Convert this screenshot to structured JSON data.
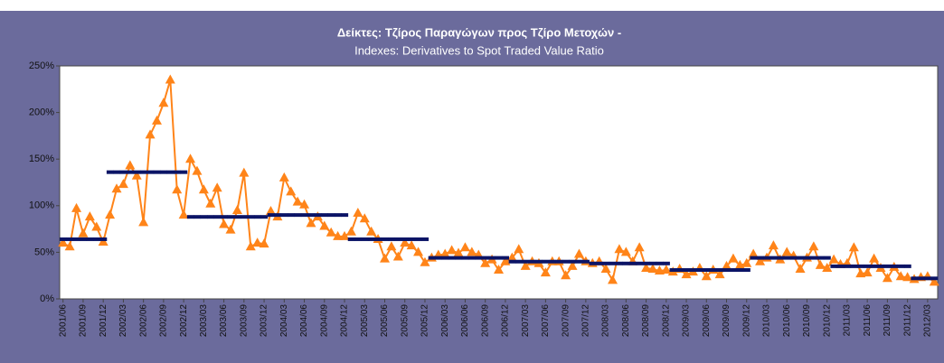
{
  "chart_data": {
    "type": "line",
    "title": "Δείκτες: Τζίρος Παραγώγων προς Τζίρο Μετοχών -",
    "subtitle": "Indexes: Derivatives to Spot Traded Value Ratio",
    "categories": [
      "2001/06",
      null,
      null,
      "2001/09",
      null,
      null,
      "2001/12",
      null,
      null,
      "2002/03",
      null,
      null,
      "2002/06",
      null,
      null,
      "2002/09",
      null,
      null,
      "2002/12",
      null,
      null,
      "2003/03",
      null,
      null,
      "2003/06",
      null,
      null,
      "2003/09",
      null,
      null,
      "2003/12",
      null,
      null,
      "2004/03",
      null,
      null,
      "2004/06",
      null,
      null,
      "2004/09",
      null,
      null,
      "2004/12",
      null,
      null,
      "2005/03",
      null,
      null,
      "2005/06",
      null,
      null,
      "2005/09",
      null,
      null,
      "2005/12",
      null,
      null,
      "2006/03",
      null,
      null,
      "2006/06",
      null,
      null,
      "2006/09",
      null,
      null,
      "2006/12",
      null,
      null,
      "2007/03",
      null,
      null,
      "2007/06",
      null,
      null,
      "2007/09",
      null,
      null,
      "2007/12",
      null,
      null,
      "2008/03",
      null,
      null,
      "2008/06",
      null,
      null,
      "2008/09",
      null,
      null,
      "2008/12",
      null,
      null,
      "2009/03",
      null,
      null,
      "2009/06",
      null,
      null,
      "2009/09",
      null,
      null,
      "2009/12",
      null,
      null,
      "2010/03",
      null,
      null,
      "2010/06",
      null,
      null,
      "2010/09",
      null,
      null,
      "2010/12",
      null,
      null,
      "2011/03",
      null,
      null,
      "2011/06",
      null,
      null,
      "2011/09",
      null,
      null,
      "2011/12",
      null,
      null,
      "2012/03",
      null
    ],
    "series": [
      {
        "color": "#ff8419",
        "marker": "triangle",
        "values": [
          60,
          56,
          97,
          70,
          88,
          77,
          61,
          90,
          118,
          123,
          143,
          132,
          82,
          176,
          191,
          210,
          235,
          117,
          90,
          150,
          137,
          117,
          102,
          119,
          80,
          74,
          95,
          135,
          56,
          60,
          59,
          94,
          88,
          130,
          115,
          104,
          101,
          81,
          88,
          78,
          71,
          67,
          67,
          72,
          92,
          86,
          72,
          64,
          43,
          56,
          45,
          60,
          57,
          50,
          39,
          44,
          47,
          48,
          52,
          49,
          55,
          50,
          47,
          38,
          42,
          31,
          40,
          44,
          53,
          35,
          40,
          38,
          28,
          40,
          40,
          25,
          35,
          48,
          40,
          38,
          40,
          32,
          20,
          53,
          50,
          40,
          55,
          33,
          32,
          30,
          31,
          29,
          32,
          26,
          29,
          33,
          24,
          31,
          26,
          35,
          43,
          36,
          38,
          48,
          40,
          44,
          57,
          42,
          50,
          46,
          32,
          44,
          56,
          36,
          33,
          42,
          37,
          38,
          55,
          27,
          28,
          43,
          33,
          22,
          34,
          24,
          23,
          21,
          23,
          24,
          18
        ]
      },
      {
        "color": "#0b1466",
        "marker": "dash",
        "values": [
          64,
          64,
          64,
          64,
          64,
          64,
          64,
          136,
          136,
          136,
          136,
          136,
          136,
          136,
          136,
          136,
          136,
          136,
          136,
          88,
          88,
          88,
          88,
          88,
          88,
          88,
          88,
          88,
          88,
          88,
          88,
          90,
          90,
          90,
          90,
          90,
          90,
          90,
          90,
          90,
          90,
          90,
          90,
          64,
          64,
          64,
          64,
          64,
          64,
          64,
          64,
          64,
          64,
          64,
          64,
          44,
          44,
          44,
          44,
          44,
          44,
          44,
          44,
          44,
          44,
          44,
          44,
          40,
          40,
          40,
          40,
          40,
          40,
          40,
          40,
          40,
          40,
          40,
          40,
          38,
          38,
          38,
          38,
          38,
          38,
          38,
          38,
          38,
          38,
          38,
          38,
          31,
          31,
          31,
          31,
          31,
          31,
          31,
          31,
          31,
          31,
          31,
          31,
          44,
          44,
          44,
          44,
          44,
          44,
          44,
          44,
          44,
          44,
          44,
          44,
          35,
          35,
          35,
          35,
          35,
          35,
          35,
          35,
          35,
          35,
          35,
          35,
          22,
          22,
          22,
          22
        ]
      }
    ],
    "ylim": [
      0,
      250
    ],
    "yticks": [
      {
        "value": 0,
        "label": "0%"
      },
      {
        "value": 50,
        "label": "50%"
      },
      {
        "value": 100,
        "label": "100%"
      },
      {
        "value": 150,
        "label": "150%"
      },
      {
        "value": 200,
        "label": "200%"
      },
      {
        "value": 250,
        "label": "250%"
      }
    ],
    "grid": false
  }
}
